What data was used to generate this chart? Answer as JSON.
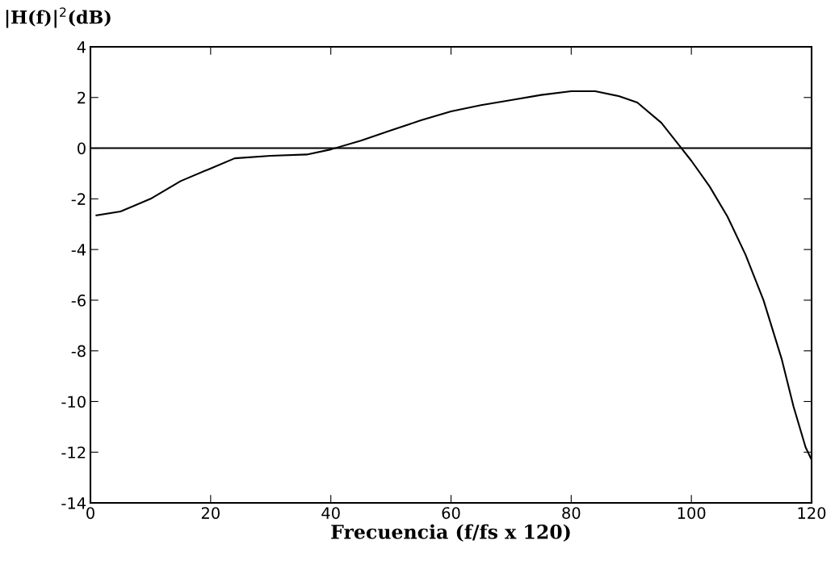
{
  "chart_data": {
    "type": "line",
    "xlabel": "Frecuencia (f/fs x 120)",
    "ylabel": "|H(f)|$^{2}$(dB)",
    "x": [
      1,
      5,
      10,
      15,
      20,
      24,
      30,
      36,
      40,
      45,
      50,
      55,
      60,
      65,
      70,
      75,
      80,
      84,
      88,
      91,
      95,
      98,
      100,
      103,
      106,
      109,
      112,
      115,
      117,
      119,
      120
    ],
    "series": [
      {
        "color": "#000000",
        "values": [
          -2.65,
          -2.5,
          -2.0,
          -1.3,
          -0.8,
          -0.4,
          -0.3,
          -0.25,
          -0.05,
          0.3,
          0.7,
          1.1,
          1.45,
          1.7,
          1.9,
          2.1,
          2.25,
          2.25,
          2.05,
          1.8,
          1.0,
          0.1,
          -0.5,
          -1.5,
          -2.7,
          -4.2,
          -6.0,
          -8.3,
          -10.2,
          -11.8,
          -12.3
        ]
      }
    ],
    "xlim": [
      0,
      120
    ],
    "xticks": [
      0,
      20,
      40,
      60,
      80,
      100,
      120
    ],
    "ylim": [
      -14,
      4
    ],
    "yticks": [
      -14,
      -12,
      -10,
      -8,
      -6,
      -4,
      -2,
      0,
      2,
      4
    ],
    "ref_lines": [
      {
        "axis": "y",
        "value": 0,
        "color": "#000000"
      }
    ],
    "grid": false,
    "legend": false
  }
}
